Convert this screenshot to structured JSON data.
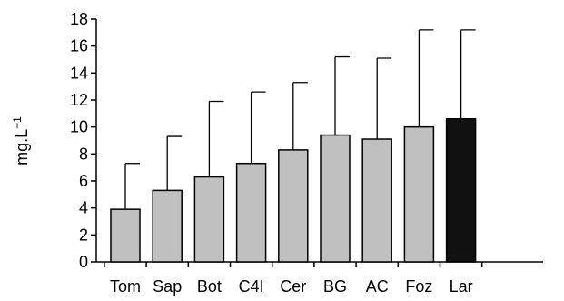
{
  "chart_data": {
    "type": "bar",
    "categories": [
      "Tom",
      "Sap",
      "Bot",
      "C4I",
      "Cer",
      "BG",
      "AC",
      "Foz",
      "Lar"
    ],
    "values": [
      3.9,
      5.3,
      6.3,
      7.3,
      8.3,
      9.4,
      9.1,
      10.0,
      10.6
    ],
    "error_upper": [
      7.3,
      9.3,
      11.9,
      12.6,
      13.3,
      15.2,
      15.1,
      17.2,
      17.2
    ],
    "bar_colors": [
      "#c0c0c0",
      "#c0c0c0",
      "#c0c0c0",
      "#c0c0c0",
      "#c0c0c0",
      "#c0c0c0",
      "#c0c0c0",
      "#c0c0c0",
      "#111111"
    ],
    "bar_stroke": "#000000",
    "yticks": [
      "0",
      "2",
      "4",
      "6",
      "8",
      "10",
      "12",
      "14",
      "16",
      "18"
    ],
    "ylabel": "mg.L",
    "ylabel_sup": "−1",
    "xlabel": "",
    "title": "",
    "ylim": [
      0,
      18
    ],
    "grid": false,
    "legend": "none"
  }
}
